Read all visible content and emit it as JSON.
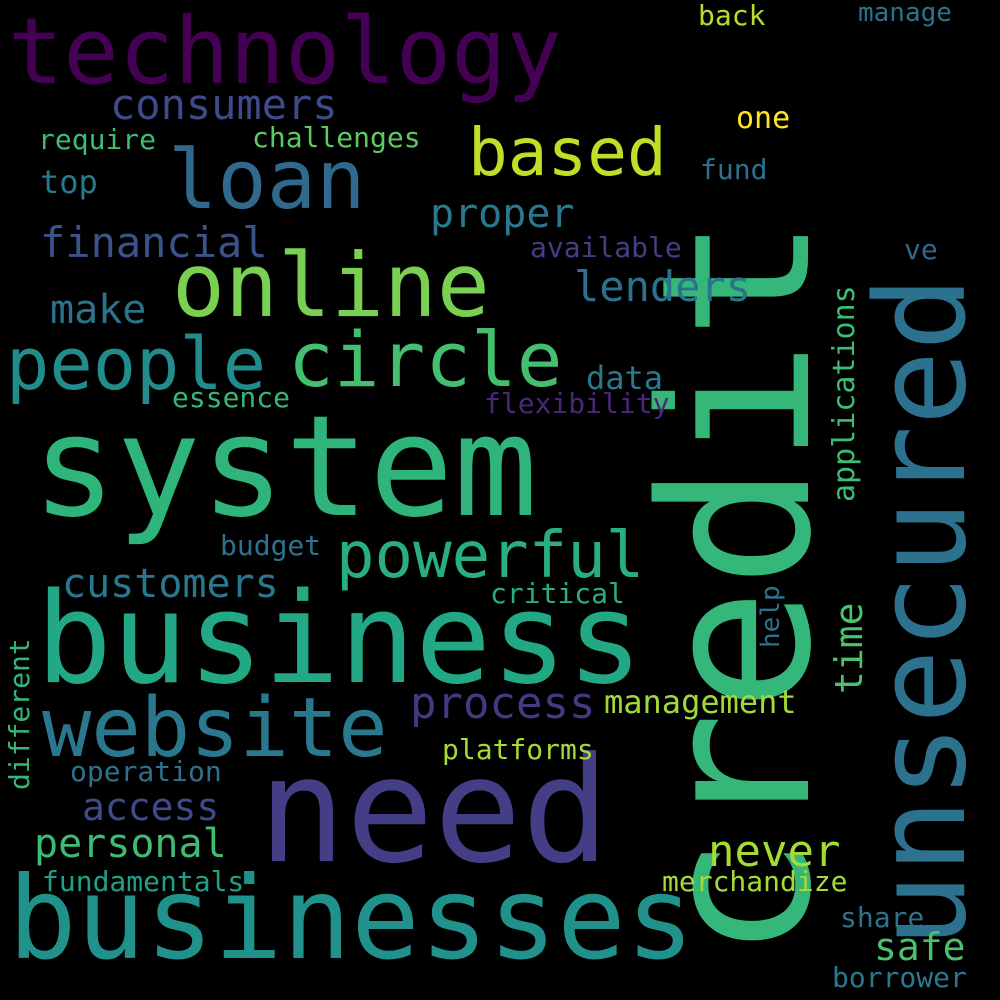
{
  "words": [
    {
      "text": "credit",
      "color": "#35b779",
      "rotated": true
    },
    {
      "text": "system",
      "color": "#2fb47c",
      "rotated": false
    },
    {
      "text": "unsecured",
      "color": "#2c728e",
      "rotated": true
    },
    {
      "text": "need",
      "color": "#433e85",
      "rotated": false
    },
    {
      "text": "technology",
      "color": "#440154",
      "rotated": false
    },
    {
      "text": "business",
      "color": "#22a884",
      "rotated": false
    },
    {
      "text": "businesses",
      "color": "#21918c",
      "rotated": false
    },
    {
      "text": "online",
      "color": "#7ad151",
      "rotated": false
    },
    {
      "text": "website",
      "color": "#2a788e",
      "rotated": false
    },
    {
      "text": "people",
      "color": "#228c8d",
      "rotated": false
    },
    {
      "text": "circle",
      "color": "#44bf70",
      "rotated": false
    },
    {
      "text": "loan",
      "color": "#31688e",
      "rotated": false
    },
    {
      "text": "powerful",
      "color": "#29af7f",
      "rotated": false
    },
    {
      "text": "based",
      "color": "#bddf26",
      "rotated": false
    },
    {
      "text": "consumers",
      "color": "#3e4a89",
      "rotated": false
    },
    {
      "text": "customers",
      "color": "#2a788e",
      "rotated": false
    },
    {
      "text": "process",
      "color": "#443983",
      "rotated": false
    },
    {
      "text": "financial",
      "color": "#3b528b",
      "rotated": false
    },
    {
      "text": "lenders",
      "color": "#2c728e",
      "rotated": false
    },
    {
      "text": "proper",
      "color": "#2a788e",
      "rotated": false
    },
    {
      "text": "personal",
      "color": "#3dbc74",
      "rotated": false
    },
    {
      "text": "access",
      "color": "#3e4a89",
      "rotated": false
    },
    {
      "text": "never",
      "color": "#a5db36",
      "rotated": false
    },
    {
      "text": "make",
      "color": "#2c728e",
      "rotated": false
    },
    {
      "text": "safe",
      "color": "#4ac16d",
      "rotated": false
    },
    {
      "text": "management",
      "color": "#a0da39",
      "rotated": false
    },
    {
      "text": "applications",
      "color": "#3dbc74",
      "rotated": true
    },
    {
      "text": "time",
      "color": "#4ac16d",
      "rotated": true
    },
    {
      "text": "data",
      "color": "#2a788e",
      "rotated": false
    },
    {
      "text": "platforms",
      "color": "#a5db36",
      "rotated": false
    },
    {
      "text": "flexibility",
      "color": "#482878",
      "rotated": false
    },
    {
      "text": "critical",
      "color": "#29af7f",
      "rotated": false
    },
    {
      "text": "operation",
      "color": "#2c728e",
      "rotated": false
    },
    {
      "text": "top",
      "color": "#2a788e",
      "rotated": false
    },
    {
      "text": "challenges",
      "color": "#5ec962",
      "rotated": false
    },
    {
      "text": "require",
      "color": "#3dbc74",
      "rotated": false
    },
    {
      "text": "essence",
      "color": "#35b779",
      "rotated": false
    },
    {
      "text": "budget",
      "color": "#2c728e",
      "rotated": false
    },
    {
      "text": "available",
      "color": "#433e85",
      "rotated": false
    },
    {
      "text": "fundamentals",
      "color": "#1fa187",
      "rotated": false
    },
    {
      "text": "merchandize",
      "color": "#a5db36",
      "rotated": false
    },
    {
      "text": "different",
      "color": "#35b779",
      "rotated": true
    },
    {
      "text": "one",
      "color": "#fde725",
      "rotated": false
    },
    {
      "text": "fund",
      "color": "#2c728e",
      "rotated": false
    },
    {
      "text": "back",
      "color": "#b5de2b",
      "rotated": false
    },
    {
      "text": "manage",
      "color": "#2c728e",
      "rotated": false
    },
    {
      "text": "ve",
      "color": "#31688e",
      "rotated": false
    },
    {
      "text": "help",
      "color": "#2c728e",
      "rotated": true
    },
    {
      "text": "share",
      "color": "#2c728e",
      "rotated": false
    },
    {
      "text": "borrower",
      "color": "#2a788e",
      "rotated": false
    }
  ]
}
